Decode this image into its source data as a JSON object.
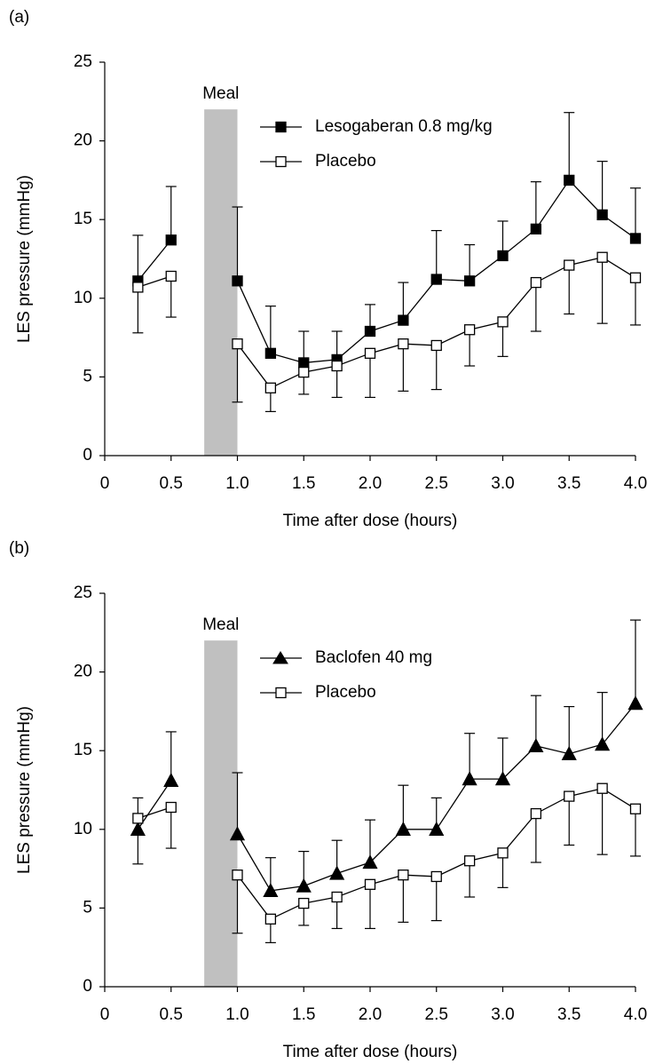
{
  "chart_data": [
    {
      "type": "line",
      "panel_label": "(a)",
      "xlabel": "Time after dose (hours)",
      "ylabel": "LES pressure (mmHg)",
      "xlim": [
        0,
        4
      ],
      "ylim": [
        0,
        25
      ],
      "xticks": [
        0,
        0.5,
        {
          "value": 1,
          "label": "1.0"
        },
        1.5,
        {
          "value": 2,
          "label": "2.0"
        },
        2.5,
        {
          "value": 3,
          "label": "3.0"
        },
        3.5,
        {
          "value": 4,
          "label": "4.0"
        }
      ],
      "yticks": [
        0,
        5,
        10,
        15,
        20,
        25
      ],
      "shade": {
        "label": "Meal",
        "xmin": 0.75,
        "xmax": 1,
        "ymax": 22,
        "color": "#c0c0c0"
      },
      "x": [
        0.25,
        0.5,
        0.75,
        1,
        1.25,
        1.5,
        1.75,
        2,
        2.25,
        2.5,
        2.75,
        3,
        3.25,
        3.5,
        3.75,
        4
      ],
      "series": [
        {
          "name": "Lesogaberan 0.8 mg/kg",
          "color": "#000000",
          "marker": "square",
          "marker_fill": "#000000",
          "error_direction": "up",
          "values": [
            11.1,
            13.7,
            null,
            11.1,
            6.5,
            5.9,
            6.1,
            7.9,
            8.6,
            11.2,
            11.1,
            12.7,
            14.4,
            17.5,
            15.3,
            13.8
          ],
          "error": [
            2.9,
            3.4,
            null,
            4.7,
            3.0,
            2.0,
            1.8,
            1.7,
            2.4,
            3.1,
            2.3,
            2.2,
            3.0,
            4.3,
            3.4,
            3.2
          ]
        },
        {
          "name": "Placebo",
          "color": "#000000",
          "marker": "square",
          "marker_fill": "#ffffff",
          "error_direction": "down",
          "values": [
            10.7,
            11.4,
            null,
            7.1,
            4.3,
            5.3,
            5.7,
            6.5,
            7.1,
            7.0,
            8.0,
            8.5,
            11.0,
            12.1,
            12.6,
            11.3
          ],
          "error": [
            2.9,
            2.6,
            null,
            3.7,
            1.5,
            1.4,
            2.0,
            2.8,
            3.0,
            2.8,
            2.3,
            2.2,
            3.1,
            3.1,
            4.2,
            3.0
          ]
        }
      ]
    },
    {
      "type": "line",
      "panel_label": "(b)",
      "xlabel": "Time after dose (hours)",
      "ylabel": "LES pressure (mmHg)",
      "xlim": [
        0,
        4
      ],
      "ylim": [
        0,
        25
      ],
      "xticks": [
        0,
        0.5,
        {
          "value": 1,
          "label": "1.0"
        },
        1.5,
        {
          "value": 2,
          "label": "2.0"
        },
        2.5,
        {
          "value": 3,
          "label": "3.0"
        },
        3.5,
        {
          "value": 4,
          "label": "4.0"
        }
      ],
      "yticks": [
        0,
        5,
        10,
        15,
        20,
        25
      ],
      "shade": {
        "label": "Meal",
        "xmin": 0.75,
        "xmax": 1,
        "ymax": 22,
        "color": "#c0c0c0"
      },
      "x": [
        0.25,
        0.5,
        0.75,
        1,
        1.25,
        1.5,
        1.75,
        2,
        2.25,
        2.5,
        2.75,
        3,
        3.25,
        3.5,
        3.75,
        4
      ],
      "series": [
        {
          "name": "Baclofen 40 mg",
          "color": "#000000",
          "marker": "triangle",
          "marker_fill": "#000000",
          "error_direction": "up",
          "values": [
            10.0,
            13.1,
            null,
            9.7,
            6.1,
            6.4,
            7.2,
            7.9,
            10.0,
            10.0,
            13.2,
            13.2,
            15.3,
            14.8,
            15.4,
            18.0
          ],
          "error": [
            2.0,
            3.1,
            null,
            3.9,
            2.1,
            2.2,
            2.1,
            2.7,
            2.8,
            2.0,
            2.9,
            2.6,
            3.2,
            3.0,
            3.3,
            5.3
          ]
        },
        {
          "name": "Placebo",
          "color": "#000000",
          "marker": "square",
          "marker_fill": "#ffffff",
          "error_direction": "down",
          "values": [
            10.7,
            11.4,
            null,
            7.1,
            4.3,
            5.3,
            5.7,
            6.5,
            7.1,
            7.0,
            8.0,
            8.5,
            11.0,
            12.1,
            12.6,
            11.3
          ],
          "error": [
            2.9,
            2.6,
            null,
            3.7,
            1.5,
            1.4,
            2.0,
            2.8,
            3.0,
            2.8,
            2.3,
            2.2,
            3.1,
            3.1,
            4.2,
            3.0
          ]
        }
      ]
    }
  ]
}
